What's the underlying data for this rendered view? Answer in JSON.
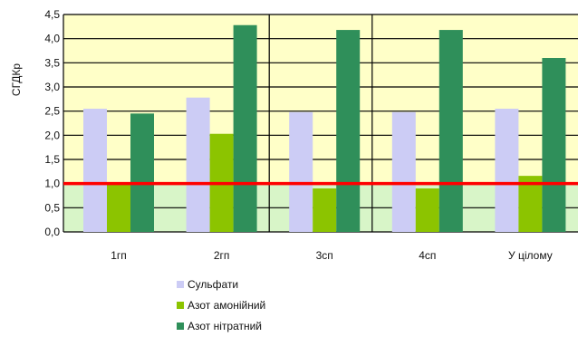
{
  "chart_data": {
    "type": "bar",
    "title": "",
    "xlabel": "",
    "ylabel": "СГДКр",
    "categories": [
      "1гп",
      "2гп",
      "3сп",
      "4сп",
      "У цілому"
    ],
    "series": [
      {
        "name": "Сульфати",
        "values": [
          2.55,
          2.78,
          2.48,
          2.48,
          2.55
        ],
        "color": "#ccccf5"
      },
      {
        "name": "Азот амонійний",
        "values": [
          1.0,
          2.03,
          0.9,
          0.9,
          1.16
        ],
        "color": "#8cc400"
      },
      {
        "name": "Азот нітратний",
        "values": [
          2.45,
          4.28,
          4.18,
          4.18,
          3.6
        ],
        "color": "#2f8f5a"
      }
    ],
    "ylim": [
      0,
      4.5
    ],
    "yticks": [
      "0,0",
      "0,5",
      "1,0",
      "1,5",
      "2,0",
      "2,5",
      "3,0",
      "3,5",
      "4,0",
      "4,5"
    ],
    "reference_line": {
      "value": 1.0,
      "color": "#ff0000"
    },
    "grid": true,
    "legend_position": "bottom",
    "background_bands": [
      {
        "from": 0,
        "to": 1,
        "color": "#d8f5c8"
      },
      {
        "from": 1,
        "to": 4.5,
        "color": "#ffffc8"
      }
    ]
  }
}
